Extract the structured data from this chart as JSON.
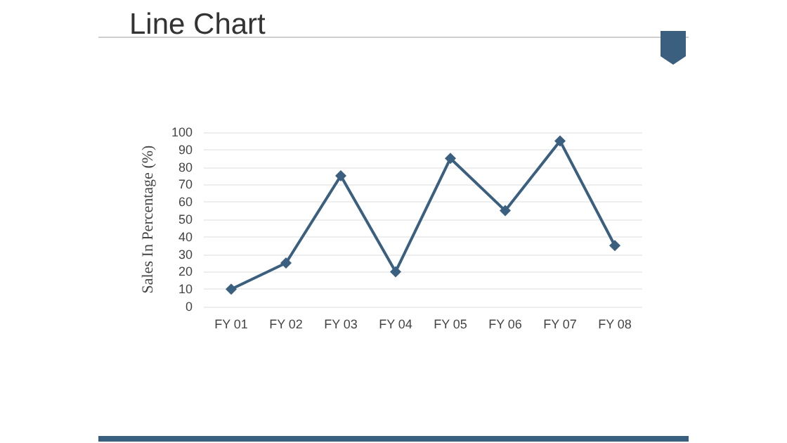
{
  "chart_data": {
    "type": "line",
    "title": "Line Chart",
    "ylabel": "Sales In Percentage (%)",
    "categories": [
      "FY 01",
      "FY 02",
      "FY 03",
      "FY 04",
      "FY 05",
      "FY 06",
      "FY 07",
      "FY 08"
    ],
    "series": [
      {
        "color": "#3b5f7f",
        "values": [
          10,
          25,
          75,
          20,
          85,
          55,
          95,
          35
        ]
      }
    ],
    "ylim": [
      0,
      100
    ],
    "yticks": [
      0,
      10,
      20,
      30,
      40,
      50,
      60,
      70,
      80,
      90,
      100
    ],
    "grid": "y",
    "marker": "diamond",
    "line_style": "solid"
  }
}
